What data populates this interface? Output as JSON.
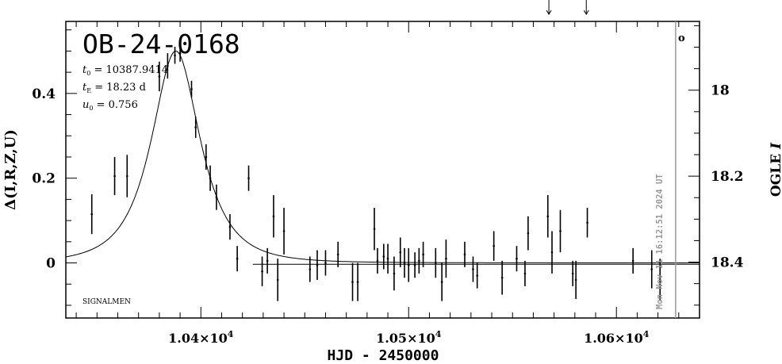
{
  "event_id": "OB-24-0168",
  "params": [
    {
      "sym": "t",
      "sub": "0",
      "text": " = 10387.9414"
    },
    {
      "sym": "t",
      "sub": "E",
      "text": " = 18.23 d"
    },
    {
      "sym": "u",
      "sub": "0",
      "text": " = 0.756"
    }
  ],
  "signalmen_label": "SIGNALMEN",
  "timestamp": "Mon Nov 11 16:12:51 2024 UT",
  "marker_symbol": "o",
  "chart_data": {
    "type": "scatter",
    "xlabel": "HJD - 2450000",
    "ylabel_left": "Δ(I,R,Z,U)",
    "ylabel_right_text": "OGLE",
    "ylabel_right_italic": "I",
    "xlim": [
      10335,
      10640
    ],
    "ylim_left": [
      -0.13,
      0.57
    ],
    "ylim_right": [
      18.53,
      17.84
    ],
    "x_ticks": [
      {
        "value": 10400,
        "mant": "1.04",
        "exp": "4"
      },
      {
        "value": 10500,
        "mant": "1.05",
        "exp": "4"
      },
      {
        "value": 10600,
        "mant": "1.06",
        "exp": "4"
      }
    ],
    "y_left_ticks": [
      {
        "value": 0,
        "label": "0"
      },
      {
        "value": 0.2,
        "label": "0.2"
      },
      {
        "value": 0.4,
        "label": "0.4"
      }
    ],
    "y_right_ticks": [
      {
        "value": 18.0,
        "label": "18"
      },
      {
        "value": 18.2,
        "label": "18.2"
      },
      {
        "value": 18.4,
        "label": "18.4"
      }
    ],
    "model": {
      "t0": 10387.9414,
      "tE": 18.23,
      "u0": 0.756
    },
    "baseline_mag": 18.405,
    "current_time": 10628.5,
    "arrow_times": [
      10567.5,
      10585.5
    ],
    "points": [
      {
        "x": 10347.5,
        "y": 0.115,
        "e": 0.047
      },
      {
        "x": 10358.5,
        "y": 0.205,
        "e": 0.045
      },
      {
        "x": 10364.5,
        "y": 0.205,
        "e": 0.05
      },
      {
        "x": 10380,
        "y": 0.44,
        "e": 0.035
      },
      {
        "x": 10384,
        "y": 0.465,
        "e": 0.03
      },
      {
        "x": 10387.5,
        "y": 0.49,
        "e": 0.02
      },
      {
        "x": 10390,
        "y": 0.495,
        "e": 0.02
      },
      {
        "x": 10395.5,
        "y": 0.41,
        "e": 0.02
      },
      {
        "x": 10397.5,
        "y": 0.32,
        "e": 0.025
      },
      {
        "x": 10402.5,
        "y": 0.25,
        "e": 0.03
      },
      {
        "x": 10404.5,
        "y": 0.2,
        "e": 0.03
      },
      {
        "x": 10407.5,
        "y": 0.155,
        "e": 0.03
      },
      {
        "x": 10414,
        "y": 0.085,
        "e": 0.03
      },
      {
        "x": 10417.5,
        "y": 0.01,
        "e": 0.03
      },
      {
        "x": 10423,
        "y": 0.2,
        "e": 0.03
      },
      {
        "x": 10429.5,
        "y": -0.02,
        "e": 0.035
      },
      {
        "x": 10432,
        "y": 0.005,
        "e": 0.03
      },
      {
        "x": 10435,
        "y": 0.11,
        "e": 0.05
      },
      {
        "x": 10437,
        "y": -0.04,
        "e": 0.05
      },
      {
        "x": 10440,
        "y": 0.075,
        "e": 0.055
      },
      {
        "x": 10452.5,
        "y": -0.015,
        "e": 0.03
      },
      {
        "x": 10456,
        "y": -0.005,
        "e": 0.035
      },
      {
        "x": 10460,
        "y": 0.0,
        "e": 0.03
      },
      {
        "x": 10466,
        "y": 0.02,
        "e": 0.03
      },
      {
        "x": 10473,
        "y": -0.045,
        "e": 0.045
      },
      {
        "x": 10475.5,
        "y": -0.045,
        "e": 0.045
      },
      {
        "x": 10483.5,
        "y": 0.08,
        "e": 0.05
      },
      {
        "x": 10485,
        "y": 0.005,
        "e": 0.03
      },
      {
        "x": 10488,
        "y": 0.015,
        "e": 0.03
      },
      {
        "x": 10490,
        "y": 0.01,
        "e": 0.035
      },
      {
        "x": 10493,
        "y": -0.025,
        "e": 0.04
      },
      {
        "x": 10496,
        "y": 0.025,
        "e": 0.035
      },
      {
        "x": 10498,
        "y": 0.0,
        "e": 0.035
      },
      {
        "x": 10500,
        "y": -0.005,
        "e": 0.04
      },
      {
        "x": 10503,
        "y": -0.005,
        "e": 0.03
      },
      {
        "x": 10505,
        "y": 0.005,
        "e": 0.03
      },
      {
        "x": 10507,
        "y": 0.02,
        "e": 0.03
      },
      {
        "x": 10513,
        "y": 0.0,
        "e": 0.035
      },
      {
        "x": 10516,
        "y": -0.045,
        "e": 0.045
      },
      {
        "x": 10518,
        "y": 0.01,
        "e": 0.045
      },
      {
        "x": 10527,
        "y": 0.02,
        "e": 0.03
      },
      {
        "x": 10531,
        "y": -0.015,
        "e": 0.03
      },
      {
        "x": 10533,
        "y": -0.03,
        "e": 0.03
      },
      {
        "x": 10541,
        "y": 0.04,
        "e": 0.035
      },
      {
        "x": 10545,
        "y": -0.035,
        "e": 0.04
      },
      {
        "x": 10552,
        "y": 0.01,
        "e": 0.03
      },
      {
        "x": 10556,
        "y": -0.025,
        "e": 0.03
      },
      {
        "x": 10557.5,
        "y": 0.07,
        "e": 0.04
      },
      {
        "x": 10567,
        "y": 0.11,
        "e": 0.05
      },
      {
        "x": 10569,
        "y": 0.025,
        "e": 0.05
      },
      {
        "x": 10573,
        "y": 0.075,
        "e": 0.05
      },
      {
        "x": 10579,
        "y": -0.025,
        "e": 0.03
      },
      {
        "x": 10580.5,
        "y": -0.04,
        "e": 0.045
      },
      {
        "x": 10586,
        "y": 0.095,
        "e": 0.035
      },
      {
        "x": 10608,
        "y": 0.005,
        "e": 0.03
      },
      {
        "x": 10617,
        "y": -0.015,
        "e": 0.045
      },
      {
        "x": 10621,
        "y": -0.04,
        "e": 0.05
      }
    ]
  }
}
